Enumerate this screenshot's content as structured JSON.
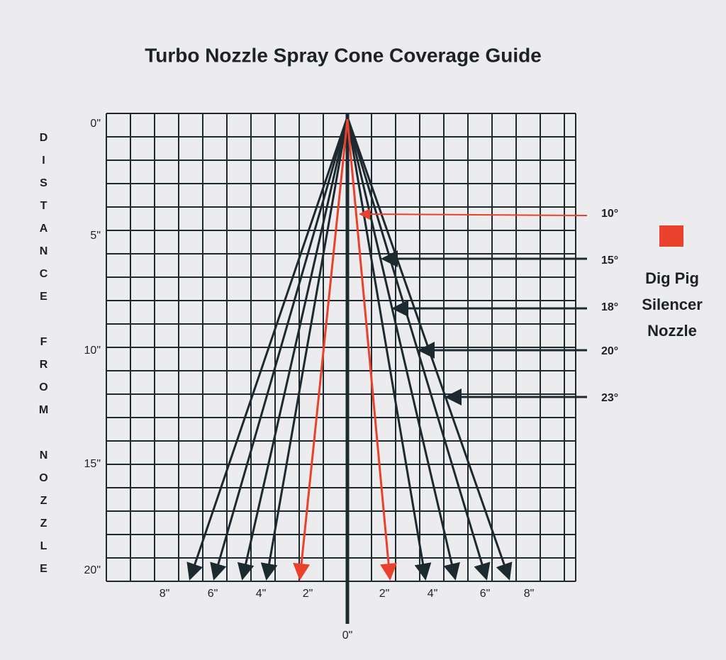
{
  "title": "Turbo Nozzle Spray Cone Coverage Guide",
  "side_label": "DISTANCE FROM NOZZLE",
  "distance_labels": [
    "0\"",
    "5\"",
    "10\"",
    "15\"",
    "20\""
  ],
  "width_labels": [
    "8\"",
    "6\"",
    "4\"",
    "2\"",
    "2\"",
    "4\"",
    "6\"",
    "8\""
  ],
  "center_label": "0\"",
  "angle_labels": [
    "10°",
    "15°",
    "18°",
    "20°",
    "23°"
  ],
  "legend": {
    "lines": [
      "Dig Pig",
      "Silencer",
      "Nozzle"
    ]
  }
}
